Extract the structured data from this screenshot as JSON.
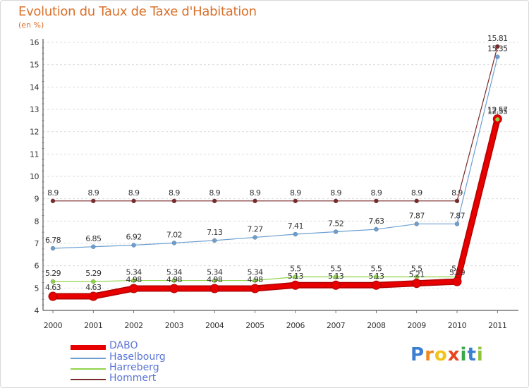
{
  "chart_data": {
    "type": "line",
    "title": "Evolution du Taux de Taxe d'Habitation",
    "subtitle": "(en %)",
    "xlabel": "",
    "ylabel": "",
    "ylim": [
      4,
      16
    ],
    "yticks": [
      "4",
      "5",
      "6",
      "7",
      "8",
      "9",
      "10",
      "11",
      "12",
      "13",
      "14",
      "15",
      "16"
    ],
    "categories": [
      "2000",
      "2001",
      "2002",
      "2003",
      "2004",
      "2005",
      "2006",
      "2007",
      "2008",
      "2009",
      "2010",
      "2011"
    ],
    "series": [
      {
        "name": "Hommert",
        "color": "#7a2a2a",
        "values": [
          8.9,
          8.9,
          8.9,
          8.9,
          8.9,
          8.9,
          8.9,
          8.9,
          8.9,
          8.9,
          8.9,
          15.81
        ],
        "labels": [
          "8.9",
          "8.9",
          "8.9",
          "8.9",
          "8.9",
          "8.9",
          "8.9",
          "8.9",
          "8.9",
          "8.9",
          "8.9",
          "15.81"
        ]
      },
      {
        "name": "Haselbourg",
        "color": "#6c9fd0",
        "values": [
          6.78,
          6.85,
          6.92,
          7.02,
          7.13,
          7.27,
          7.41,
          7.52,
          7.63,
          7.87,
          7.87,
          15.35
        ],
        "labels": [
          "6.78",
          "6.85",
          "6.92",
          "7.02",
          "7.13",
          "7.27",
          "7.41",
          "7.52",
          "7.63",
          "7.87",
          "7.87",
          "15.35"
        ]
      },
      {
        "name": "Harreberg",
        "color": "#8fd44a",
        "values": [
          5.29,
          5.29,
          5.34,
          5.34,
          5.34,
          5.34,
          5.5,
          5.5,
          5.5,
          5.5,
          5.5,
          12.55
        ],
        "labels": [
          "5.29",
          "5.29",
          "5.34",
          "5.34",
          "5.34",
          "5.34",
          "5.5",
          "5.5",
          "5.5",
          "5.5",
          "5.5",
          "12.55"
        ]
      },
      {
        "name": "DABO",
        "color": "#e80000",
        "values": [
          4.63,
          4.63,
          4.98,
          4.98,
          4.98,
          4.98,
          5.13,
          5.13,
          5.13,
          5.21,
          5.29,
          12.57
        ],
        "labels": [
          "4.63",
          "4.63",
          "4.98",
          "4.98",
          "4.98",
          "4.98",
          "5.13",
          "5.13",
          "5.13",
          "5.21",
          "5.29",
          "12.57"
        ]
      }
    ]
  },
  "legend": [
    "DABO",
    "Haselbourg",
    "Harreberg",
    "Hommert"
  ],
  "brand": {
    "letters": [
      "P",
      "r",
      "o",
      "x",
      "i",
      "t",
      "i"
    ]
  }
}
